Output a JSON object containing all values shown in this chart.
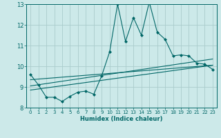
{
  "xlabel": "Humidex (Indice chaleur)",
  "bg_color": "#cce9e9",
  "grid_color": "#aacccc",
  "line_color": "#006666",
  "xlim": [
    -0.5,
    23.5
  ],
  "ylim": [
    8,
    13
  ],
  "yticks": [
    8,
    9,
    10,
    11,
    12,
    13
  ],
  "xticks": [
    0,
    1,
    2,
    3,
    4,
    5,
    6,
    7,
    8,
    9,
    10,
    11,
    12,
    13,
    14,
    15,
    16,
    17,
    18,
    19,
    20,
    21,
    22,
    23
  ],
  "main_line": {
    "x": [
      0,
      1,
      2,
      3,
      4,
      5,
      6,
      7,
      8,
      9,
      10,
      11,
      12,
      13,
      14,
      15,
      16,
      17,
      18,
      19,
      20,
      21,
      22,
      23
    ],
    "y": [
      9.6,
      9.1,
      8.5,
      8.5,
      8.3,
      8.55,
      8.75,
      8.8,
      8.65,
      9.55,
      10.7,
      13.0,
      11.2,
      12.35,
      11.5,
      13.1,
      11.65,
      11.3,
      10.5,
      10.55,
      10.5,
      10.15,
      10.1,
      9.85
    ]
  },
  "trend_lines": [
    {
      "x": [
        0,
        23
      ],
      "y": [
        8.85,
        10.05
      ]
    },
    {
      "x": [
        0,
        23
      ],
      "y": [
        9.05,
        10.35
      ]
    },
    {
      "x": [
        0,
        23
      ],
      "y": [
        9.35,
        10.05
      ]
    }
  ]
}
